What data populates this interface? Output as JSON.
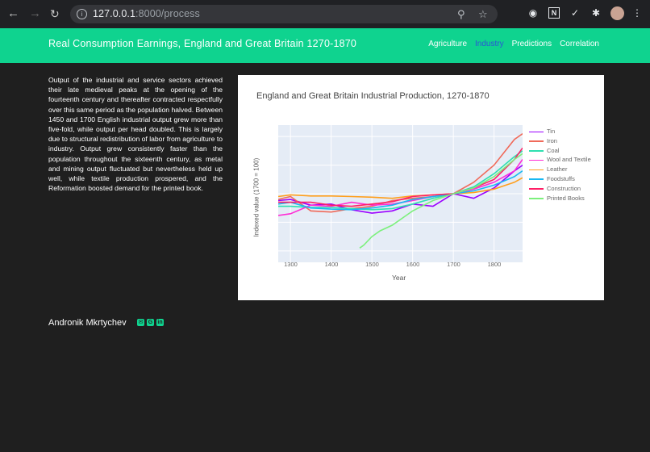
{
  "browser": {
    "url_host": "127.0.0.1",
    "url_rest": ":8000/process"
  },
  "navbar": {
    "brand": "Real Consumption Earnings, England and Great Britain 1270-1870",
    "links": [
      "Agriculture",
      "Industry",
      "Predictions",
      "Correlation"
    ],
    "active_index": 1
  },
  "main": {
    "paragraph": "Output of the industrial and service sectors achieved their late medieval peaks at the opening of the fourteenth century and thereafter contracted respectfully over this same period as the population halved. Between 1450 and 1700 English industrial output grew more than five-fold, while output per head doubled. This is largely due to structural redistribution of labor from agriculture to industry. Output grew consistently faster than the population throughout the sixteenth century, as metal and mining output fluctuated but nevertheless held up well, while textile production prospered, and the Reformation boosted demand for the printed book."
  },
  "chart_data": {
    "type": "line",
    "title": "England and Great Britain Industrial Production, 1270-1870",
    "xlabel": "Year",
    "ylabel": "Indexed value (1700 = 100)",
    "xlim": [
      1270,
      1870
    ],
    "ylim": [
      -20,
      220
    ],
    "xticks": [
      1300,
      1400,
      1500,
      1600,
      1700,
      1800
    ],
    "legend_position": "right",
    "grid": true,
    "series": [
      {
        "name": "Tin",
        "color": "#9b00ff",
        "x": [
          1270,
          1300,
          1350,
          1400,
          1450,
          1500,
          1550,
          1600,
          1650,
          1700,
          1750,
          1800,
          1850,
          1870
        ],
        "values": [
          88,
          90,
          80,
          82,
          72,
          66,
          70,
          82,
          78,
          100,
          92,
          110,
          140,
          150
        ]
      },
      {
        "name": "Iron",
        "color": "#f06a5a",
        "x": [
          1270,
          1300,
          1350,
          1400,
          1450,
          1500,
          1550,
          1600,
          1650,
          1700,
          1750,
          1800,
          1850,
          1870
        ],
        "values": [
          90,
          95,
          70,
          68,
          74,
          78,
          88,
          92,
          95,
          100,
          120,
          150,
          195,
          205
        ]
      },
      {
        "name": "Coal",
        "color": "#2fe0b0",
        "x": [
          1270,
          1300,
          1350,
          1400,
          1450,
          1500,
          1550,
          1600,
          1650,
          1700,
          1750,
          1800,
          1850,
          1870
        ],
        "values": [
          78,
          78,
          76,
          76,
          74,
          72,
          74,
          82,
          92,
          100,
          112,
          135,
          165,
          175
        ]
      },
      {
        "name": "Wool and Textile",
        "color": "#ff2dd5",
        "x": [
          1270,
          1300,
          1350,
          1400,
          1450,
          1500,
          1550,
          1600,
          1650,
          1700,
          1750,
          1800,
          1850,
          1870
        ],
        "values": [
          62,
          65,
          80,
          78,
          85,
          80,
          82,
          88,
          95,
          100,
          108,
          120,
          140,
          160
        ]
      },
      {
        "name": "Leather",
        "color": "#ff9f1c",
        "x": [
          1270,
          1300,
          1350,
          1400,
          1450,
          1500,
          1550,
          1600,
          1650,
          1700,
          1750,
          1800,
          1850,
          1870
        ],
        "values": [
          95,
          98,
          96,
          96,
          95,
          94,
          92,
          96,
          98,
          100,
          102,
          108,
          120,
          128
        ]
      },
      {
        "name": "Foodstuffs",
        "color": "#18b8f2",
        "x": [
          1270,
          1300,
          1350,
          1400,
          1450,
          1500,
          1550,
          1600,
          1650,
          1700,
          1750,
          1800,
          1850,
          1870
        ],
        "values": [
          82,
          85,
          75,
          73,
          72,
          75,
          80,
          90,
          95,
          100,
          105,
          115,
          130,
          140
        ]
      },
      {
        "name": "Construction",
        "color": "#ff1f66",
        "x": [
          1270,
          1300,
          1350,
          1400,
          1450,
          1500,
          1550,
          1600,
          1650,
          1700,
          1750,
          1800,
          1850,
          1870
        ],
        "values": [
          85,
          85,
          85,
          80,
          78,
          82,
          86,
          95,
          98,
          100,
          110,
          125,
          160,
          180
        ]
      },
      {
        "name": "Printed Books",
        "color": "#7cf07c",
        "x": [
          1470,
          1480,
          1500,
          1520,
          1550,
          1600,
          1650,
          1700,
          1750,
          1800,
          1850,
          1870
        ],
        "values": [
          5,
          10,
          25,
          35,
          45,
          70,
          88,
          100,
          110,
          130,
          160,
          170
        ]
      }
    ]
  },
  "footer": {
    "author": "Andronik Mkrtychev",
    "icons": [
      "email-icon",
      "github-icon",
      "linkedin-icon"
    ]
  }
}
